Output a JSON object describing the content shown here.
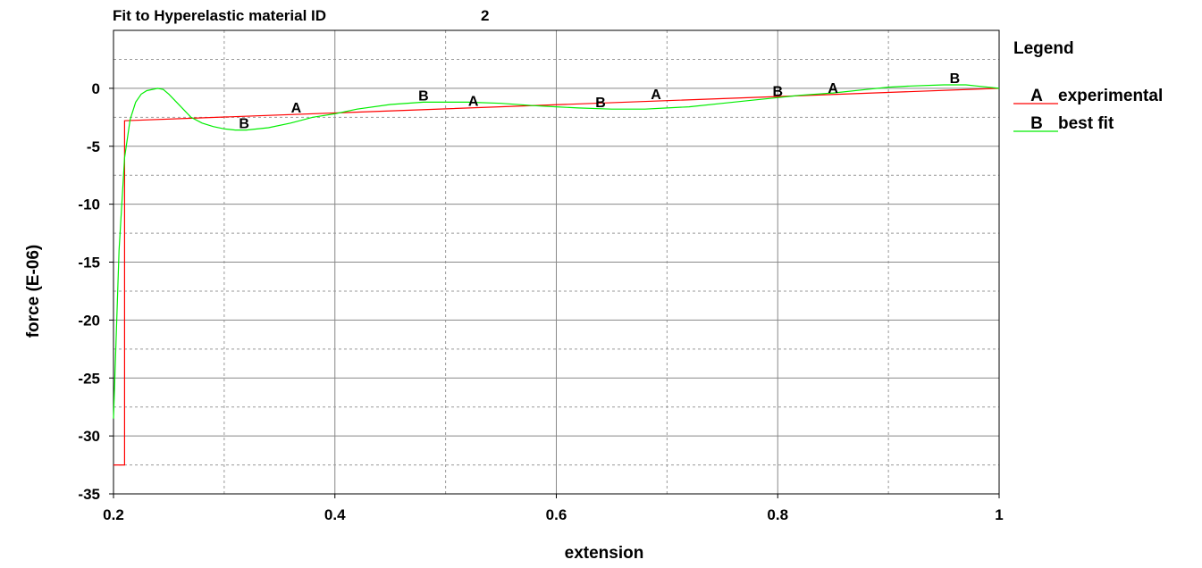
{
  "chart_data": {
    "type": "line",
    "title": "Fit to Hyperelastic material ID",
    "title_value": "2",
    "xlabel": "extension",
    "ylabel": "force (E-06)",
    "xlim": [
      0.2,
      1.0
    ],
    "ylim": [
      -35,
      5
    ],
    "x_ticks": [
      0.2,
      0.4,
      0.6,
      0.8,
      1.0
    ],
    "x_tick_labels": [
      "0.2",
      "0.4",
      "0.6",
      "0.8",
      "1"
    ],
    "y_ticks": [
      0,
      -5,
      -10,
      -15,
      -20,
      -25,
      -30,
      -35
    ],
    "y_tick_labels": [
      "0",
      "-5",
      "-10",
      "-15",
      "-20",
      "-25",
      "-30",
      "-35"
    ],
    "grid": true,
    "legend": {
      "title": "Legend",
      "placement": "right",
      "entries": [
        {
          "marker": "A",
          "label": "experimental"
        },
        {
          "marker": "B",
          "label": "best fit"
        }
      ]
    },
    "series": [
      {
        "name": "experimental",
        "marker": "A",
        "color": "#ff0000",
        "x": [
          0.2,
          0.21,
          0.21,
          1.0
        ],
        "y": [
          -32.5,
          -32.5,
          -2.8,
          0.0
        ],
        "marker_x": [
          0.365,
          0.525,
          0.69,
          0.85
        ]
      },
      {
        "name": "best fit",
        "marker": "B",
        "color": "#00ee00",
        "x": [
          0.2,
          0.205,
          0.21,
          0.215,
          0.22,
          0.225,
          0.23,
          0.24,
          0.245,
          0.25,
          0.26,
          0.27,
          0.28,
          0.29,
          0.3,
          0.31,
          0.32,
          0.34,
          0.36,
          0.38,
          0.4,
          0.42,
          0.45,
          0.48,
          0.5,
          0.52,
          0.55,
          0.58,
          0.6,
          0.62,
          0.65,
          0.68,
          0.7,
          0.72,
          0.75,
          0.78,
          0.8,
          0.82,
          0.85,
          0.88,
          0.9,
          0.92,
          0.95,
          0.97,
          0.98,
          1.0
        ],
        "y": [
          -28.5,
          -14.0,
          -6.0,
          -2.7,
          -1.2,
          -0.5,
          -0.2,
          0.0,
          -0.1,
          -0.5,
          -1.5,
          -2.5,
          -3.0,
          -3.3,
          -3.5,
          -3.6,
          -3.6,
          -3.4,
          -3.0,
          -2.5,
          -2.2,
          -1.8,
          -1.4,
          -1.2,
          -1.2,
          -1.2,
          -1.3,
          -1.5,
          -1.6,
          -1.7,
          -1.8,
          -1.8,
          -1.7,
          -1.6,
          -1.3,
          -1.0,
          -0.8,
          -0.6,
          -0.4,
          -0.1,
          0.1,
          0.2,
          0.3,
          0.3,
          0.2,
          0.0
        ],
        "marker_x": [
          0.318,
          0.48,
          0.64,
          0.8,
          0.96
        ]
      }
    ]
  }
}
